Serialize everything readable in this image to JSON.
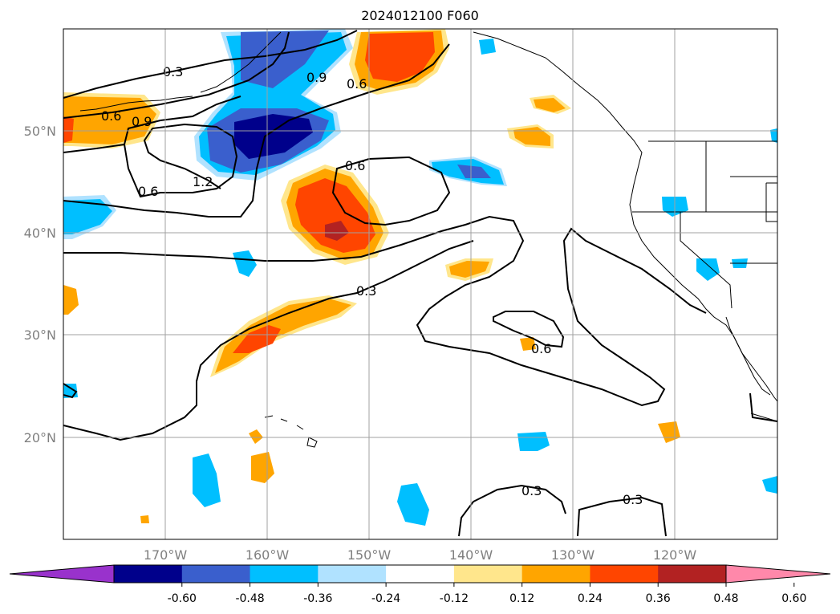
{
  "title": "2024012100 F060",
  "latitude_labels": [
    "50°N",
    "40°N",
    "30°N",
    "20°N"
  ],
  "longitude_labels": [
    "170°W",
    "160°W",
    "150°W",
    "140°W",
    "130°W",
    "120°W"
  ],
  "colorbar": {
    "ticks": [
      "-0.60",
      "-0.48",
      "-0.36",
      "-0.24",
      "-0.12",
      "0.12",
      "0.24",
      "0.36",
      "0.48",
      "0.60"
    ],
    "colors": [
      "#9932cc",
      "#00008b",
      "#3a5fcd",
      "#00bfff",
      "#b0e2ff",
      "#ffffff",
      "#ffe68c",
      "#ffa500",
      "#ff4500",
      "#b22222",
      "#ff88aa"
    ],
    "extend": "both"
  },
  "contour_labels": [
    "0.3",
    "0.6",
    "0.9",
    "0.6",
    "0.9",
    "0.6",
    "1.2",
    "0.6",
    "0.3",
    "0.6",
    "0.3",
    "0.3"
  ],
  "fill_colors": {
    "orange": "#ffa500",
    "red_orange": "#ff4500",
    "yellow": "#ffe68c",
    "light_blue": "#b0e2ff",
    "sky_blue": "#00bfff",
    "royal_blue": "#3a5fcd",
    "navy": "#00008b",
    "dark_red": "#b22222"
  }
}
